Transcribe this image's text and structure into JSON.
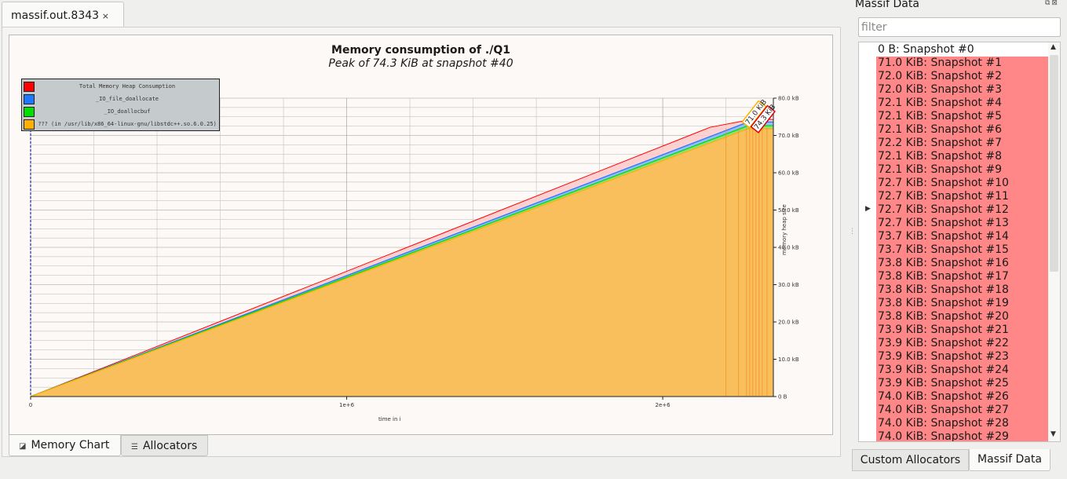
{
  "document_tab": {
    "label": "massif.out.8343",
    "close": "×"
  },
  "chart_data": {
    "type": "area",
    "title": "Memory consumption of ./Q1",
    "subtitle": "Peak of 74.3 KiB at snapshot #40",
    "xlabel": "time in i",
    "ylabel": "memory heap size",
    "xlim": [
      0,
      2350000
    ],
    "ylim": [
      0,
      80
    ],
    "x_ticks": [
      {
        "value": 0,
        "label": "0"
      },
      {
        "value": 1000000,
        "label": "1e+6"
      },
      {
        "value": 2000000,
        "label": "2e+6"
      }
    ],
    "y_ticks": [
      {
        "value": 0,
        "label": "0 B"
      },
      {
        "value": 10,
        "label": "10.0 kB"
      },
      {
        "value": 20,
        "label": "20.0 kB"
      },
      {
        "value": 30,
        "label": "30.0 kB"
      },
      {
        "value": 40,
        "label": "40.0 kB"
      },
      {
        "value": 50,
        "label": "50.0 kB"
      },
      {
        "value": 60,
        "label": "60.0 kB"
      },
      {
        "value": 70,
        "label": "70.0 kB"
      },
      {
        "value": 80,
        "label": "80.0 kB"
      }
    ],
    "legend_position": "top-left",
    "series": [
      {
        "name": "Total Memory Heap Consumption",
        "color": "#ff0000",
        "x": [
          0,
          2150000,
          2280000,
          2350000
        ],
        "values": [
          0,
          72.2,
          74.3,
          74.3
        ]
      },
      {
        "name": "_IO_file_doallocate",
        "color": "#1e78ff",
        "x": [
          0,
          2270000,
          2350000
        ],
        "values": [
          0,
          73.6,
          73.6
        ]
      },
      {
        "name": "_IO_doallocbuf",
        "color": "#00e000",
        "x": [
          0,
          2270000,
          2350000
        ],
        "values": [
          0,
          72.6,
          72.6
        ]
      },
      {
        "name": "??? (in /usr/lib/x86_64-linux-gnu/libstdc++.so.6.0.25)",
        "color": "#ffb000",
        "x": [
          0,
          2270000,
          2350000
        ],
        "values": [
          0,
          71.8,
          71.8
        ]
      }
    ],
    "annotations": [
      "71.0 KiB",
      "74.3 KiB"
    ]
  },
  "bottom_tabs": [
    {
      "label": "Memory Chart",
      "icon": "chart-icon"
    },
    {
      "label": "Allocators",
      "icon": "list-icon"
    }
  ],
  "panel": {
    "title": "Massif Data",
    "buttons": "⧉⊠",
    "filter_placeholder": "filter",
    "highlight_color": "#ff8787",
    "snapshots": [
      "0 B: Snapshot #0",
      "71.0 KiB: Snapshot #1",
      "72.0 KiB: Snapshot #2",
      "72.0 KiB: Snapshot #3",
      "72.1 KiB: Snapshot #4",
      "72.1 KiB: Snapshot #5",
      "72.1 KiB: Snapshot #6",
      "72.2 KiB: Snapshot #7",
      "72.1 KiB: Snapshot #8",
      "72.1 KiB: Snapshot #9",
      "72.7 KiB: Snapshot #10",
      "72.7 KiB: Snapshot #11",
      "72.7 KiB: Snapshot #12",
      "72.7 KiB: Snapshot #13",
      "73.7 KiB: Snapshot #14",
      "73.7 KiB: Snapshot #15",
      "73.8 KiB: Snapshot #16",
      "73.8 KiB: Snapshot #17",
      "73.8 KiB: Snapshot #18",
      "73.8 KiB: Snapshot #19",
      "73.8 KiB: Snapshot #20",
      "73.9 KiB: Snapshot #21",
      "73.9 KiB: Snapshot #22",
      "73.9 KiB: Snapshot #23",
      "73.9 KiB: Snapshot #24",
      "73.9 KiB: Snapshot #25",
      "74.0 KiB: Snapshot #26",
      "74.0 KiB: Snapshot #27",
      "74.0 KiB: Snapshot #28",
      "74.0 KiB: Snapshot #29"
    ]
  },
  "right_tabs": [
    "Custom Allocators",
    "Massif Data"
  ]
}
